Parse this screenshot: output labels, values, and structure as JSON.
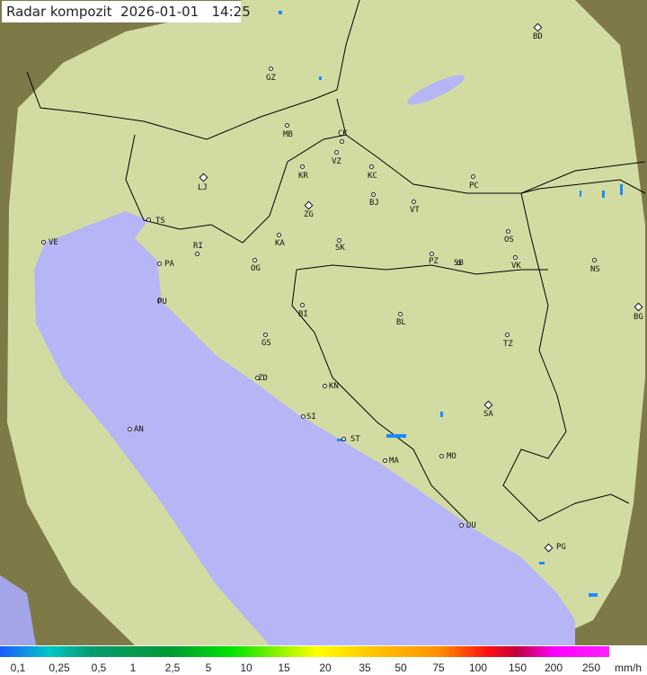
{
  "title": "Radar kompozit  2026-01-01   14:25",
  "colors": {
    "sea": "#b4b4f8",
    "terrain": "#8a8a50",
    "coverage": "#d8e6a8",
    "border": "#000000",
    "echo": "#1a8cff"
  },
  "cities": [
    "BD",
    "GZ",
    "MB",
    "CK",
    "VZ",
    "KR",
    "KC",
    "PC",
    "LJ",
    "ZG",
    "BJ",
    "VT",
    "TS",
    "VE",
    "KA",
    "SK",
    "OS",
    "RI",
    "PA",
    "OG",
    "PZ",
    "SB",
    "VK",
    "NS",
    "BG",
    "PU",
    "BI",
    "BL",
    "TZ",
    "GS",
    "ZD",
    "KN",
    "SA",
    "SI",
    "AN",
    "ST",
    "MO",
    "MA",
    "DU",
    "PG"
  ],
  "legend": {
    "ticks": [
      "0,1",
      "0,25",
      "0,5",
      "1",
      "2,5",
      "5",
      "10",
      "15",
      "20",
      "35",
      "50",
      "75",
      "100",
      "150",
      "200",
      "250"
    ],
    "unit": "mm/h"
  }
}
